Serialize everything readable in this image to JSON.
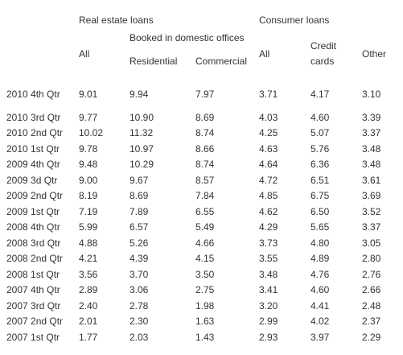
{
  "headers": {
    "real_estate_loans": "Real estate loans",
    "consumer_loans": "Consumer loans",
    "booked_domestic": "Booked in domestic offices",
    "all_re": "All",
    "residential": "Residential",
    "commercial": "Commercial",
    "all_consumer": "All",
    "credit_line1": "Credit",
    "credit_line2": "cards",
    "other": "Other"
  },
  "rows": [
    {
      "period": "2010 4th Qtr",
      "re_all": "9.01",
      "residential": "9.94",
      "commercial": "7.97",
      "cons_all": "3.71",
      "credit_cards": "4.17",
      "other": "3.10"
    },
    {
      "period": "2010 3rd Qtr",
      "re_all": "9.77",
      "residential": "10.90",
      "commercial": "8.69",
      "cons_all": "4.03",
      "credit_cards": "4.60",
      "other": "3.39"
    },
    {
      "period": "2010 2nd Qtr",
      "re_all": "10.02",
      "residential": "11.32",
      "commercial": "8.74",
      "cons_all": "4.25",
      "credit_cards": "5.07",
      "other": "3.37"
    },
    {
      "period": "2010 1st Qtr",
      "re_all": "9.78",
      "residential": "10.97",
      "commercial": "8.66",
      "cons_all": "4.63",
      "credit_cards": "5.76",
      "other": "3.48"
    },
    {
      "period": "2009 4th Qtr",
      "re_all": "9.48",
      "residential": "10.29",
      "commercial": "8.74",
      "cons_all": "4.64",
      "credit_cards": "6.36",
      "other": "3.48"
    },
    {
      "period": "2009 3d Qtr",
      "re_all": "9.00",
      "residential": "9.67",
      "commercial": "8.57",
      "cons_all": "4.72",
      "credit_cards": "6.51",
      "other": "3.61"
    },
    {
      "period": "2009 2nd Qtr",
      "re_all": "8.19",
      "residential": "8.69",
      "commercial": "7.84",
      "cons_all": "4.85",
      "credit_cards": "6.75",
      "other": "3.69"
    },
    {
      "period": "2009 1st Qtr",
      "re_all": "7.19",
      "residential": "7.89",
      "commercial": "6.55",
      "cons_all": "4.62",
      "credit_cards": "6.50",
      "other": "3.52"
    },
    {
      "period": "2008 4th Qtr",
      "re_all": "5.99",
      "residential": "6.57",
      "commercial": "5.49",
      "cons_all": "4.29",
      "credit_cards": "5.65",
      "other": "3.37"
    },
    {
      "period": "2008 3rd Qtr",
      "re_all": "4.88",
      "residential": "5.26",
      "commercial": "4.66",
      "cons_all": "3.73",
      "credit_cards": "4.80",
      "other": "3.05"
    },
    {
      "period": "2008 2nd Qtr",
      "re_all": "4.21",
      "residential": "4.39",
      "commercial": "4.15",
      "cons_all": "3.55",
      "credit_cards": "4.89",
      "other": "2.80"
    },
    {
      "period": "2008 1st Qtr",
      "re_all": "3.56",
      "residential": "3.70",
      "commercial": "3.50",
      "cons_all": "3.48",
      "credit_cards": "4.76",
      "other": "2.76"
    },
    {
      "period": "2007 4th Qtr",
      "re_all": "2.89",
      "residential": "3.06",
      "commercial": "2.75",
      "cons_all": "3.41",
      "credit_cards": "4.60",
      "other": "2.66"
    },
    {
      "period": "2007 3rd Qtr",
      "re_all": "2.40",
      "residential": "2.78",
      "commercial": "1.98",
      "cons_all": "3.20",
      "credit_cards": "4.41",
      "other": "2.48"
    },
    {
      "period": "2007 2nd Qtr",
      "re_all": "2.01",
      "residential": "2.30",
      "commercial": "1.63",
      "cons_all": "2.99",
      "credit_cards": "4.02",
      "other": "2.37"
    },
    {
      "period": "2007 1st Qtr",
      "re_all": "1.77",
      "residential": "2.03",
      "commercial": "1.43",
      "cons_all": "2.93",
      "credit_cards": "3.97",
      "other": "2.29"
    }
  ]
}
